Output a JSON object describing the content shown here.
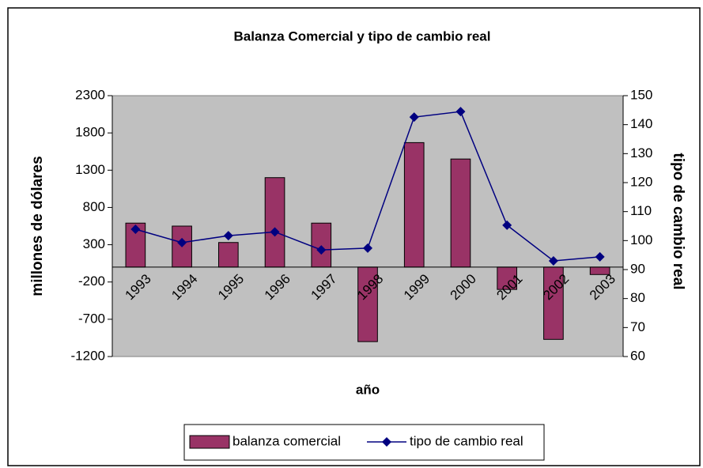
{
  "chart_data": {
    "type": "bar",
    "title": "Balanza Comercial y tipo de cambio real",
    "x_label": "año",
    "y_label": "millones de dólares",
    "y2_label": "tipo de cambio real",
    "categories": [
      "1993",
      "1994",
      "1995",
      "1996",
      "1997",
      "1998",
      "1999",
      "2000",
      "2001",
      "2002",
      "2003"
    ],
    "series": [
      {
        "name": "balanza comercial",
        "type": "bar",
        "color": "#993366",
        "axis": "y",
        "values": [
          590,
          550,
          330,
          1200,
          590,
          -1000,
          1670,
          1450,
          -300,
          -970,
          -100
        ]
      },
      {
        "name": "tipo de cambio real",
        "type": "line",
        "color": "#000080",
        "axis": "y2",
        "values": [
          103.9,
          99.3,
          101.7,
          103,
          96.8,
          97.4,
          142.6,
          144.5,
          105.3,
          93,
          94.4
        ]
      }
    ],
    "ylim": [
      -1200,
      2300
    ],
    "yticks": [
      -1200,
      -700,
      -200,
      300,
      800,
      1300,
      1800,
      2300
    ],
    "y2lim": [
      60,
      150
    ],
    "y2ticks": [
      60,
      70,
      80,
      90,
      100,
      110,
      120,
      130,
      140,
      150
    ],
    "grid": false,
    "plot_background": "#c0c0c0",
    "legend": "bottom"
  }
}
